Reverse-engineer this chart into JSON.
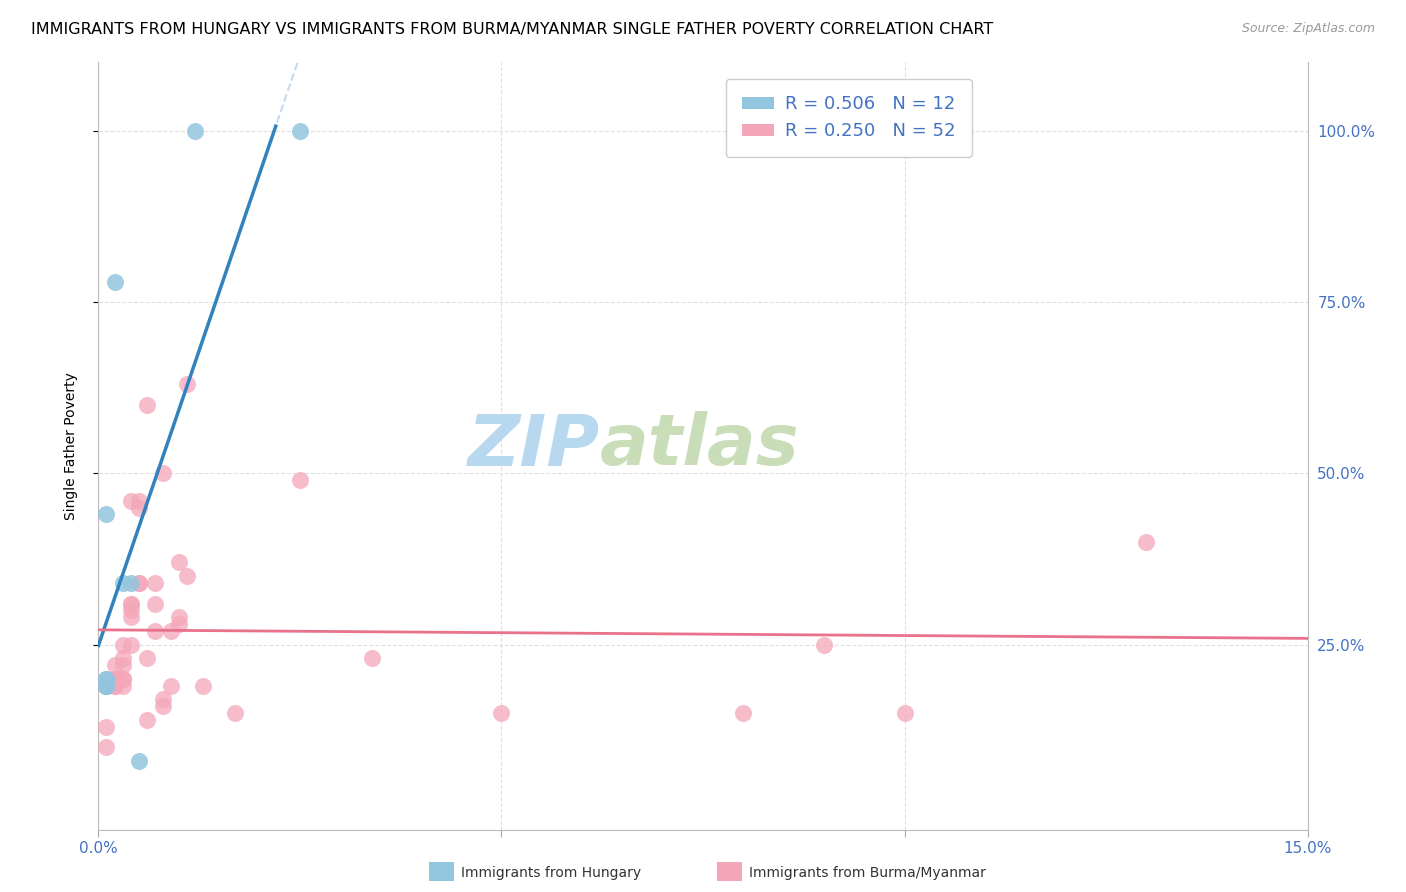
{
  "title": "IMMIGRANTS FROM HUNGARY VS IMMIGRANTS FROM BURMA/MYANMAR SINGLE FATHER POVERTY CORRELATION CHART",
  "source": "Source: ZipAtlas.com",
  "ylabel": "Single Father Poverty",
  "right_yticks": [
    "100.0%",
    "75.0%",
    "50.0%",
    "25.0%"
  ],
  "right_ytick_vals": [
    1.0,
    0.75,
    0.5,
    0.25
  ],
  "xlim": [
    0.0,
    0.15
  ],
  "ylim": [
    -0.02,
    1.1
  ],
  "legend_hungary_R": "0.506",
  "legend_hungary_N": "12",
  "legend_burma_R": "0.250",
  "legend_burma_N": "52",
  "hungary_color": "#92c5de",
  "burma_color": "#f4a6b8",
  "trendline_hungary_color": "#3182bd",
  "trendline_burma_color": "#e8728a",
  "trendline_hungary_dashed_color": "#c6dbef",
  "watermark_zip": "ZIP",
  "watermark_atlas": "atlas",
  "hungary_x": [
    0.001,
    0.002,
    0.001,
    0.001,
    0.001,
    0.001,
    0.003,
    0.004,
    0.005,
    0.025,
    0.012,
    0.001
  ],
  "hungary_y": [
    0.2,
    0.78,
    0.44,
    0.2,
    0.19,
    0.19,
    0.34,
    0.34,
    0.08,
    1.0,
    1.0,
    0.19
  ],
  "burma_x": [
    0.001,
    0.001,
    0.001,
    0.001,
    0.001,
    0.002,
    0.002,
    0.002,
    0.002,
    0.002,
    0.002,
    0.003,
    0.003,
    0.003,
    0.003,
    0.003,
    0.003,
    0.004,
    0.004,
    0.004,
    0.004,
    0.004,
    0.004,
    0.005,
    0.005,
    0.005,
    0.005,
    0.006,
    0.006,
    0.006,
    0.007,
    0.007,
    0.007,
    0.008,
    0.008,
    0.008,
    0.009,
    0.009,
    0.01,
    0.01,
    0.01,
    0.011,
    0.011,
    0.013,
    0.017,
    0.025,
    0.034,
    0.05,
    0.08,
    0.09,
    0.1,
    0.13
  ],
  "burma_y": [
    0.19,
    0.19,
    0.13,
    0.19,
    0.1,
    0.19,
    0.2,
    0.2,
    0.19,
    0.2,
    0.22,
    0.19,
    0.2,
    0.23,
    0.22,
    0.2,
    0.25,
    0.46,
    0.3,
    0.29,
    0.25,
    0.31,
    0.31,
    0.45,
    0.46,
    0.34,
    0.34,
    0.6,
    0.23,
    0.14,
    0.27,
    0.34,
    0.31,
    0.16,
    0.17,
    0.5,
    0.27,
    0.19,
    0.37,
    0.28,
    0.29,
    0.35,
    0.63,
    0.19,
    0.15,
    0.49,
    0.23,
    0.15,
    0.15,
    0.25,
    0.15,
    0.4
  ],
  "background_color": "#ffffff",
  "grid_color": "#e0e0e0",
  "title_fontsize": 11.5,
  "axis_label_fontsize": 10,
  "tick_fontsize": 11,
  "watermark_fontsize_zip": 52,
  "watermark_fontsize_atlas": 52,
  "watermark_color_zip": "#cce4f5",
  "watermark_color_atlas": "#d8e8c8",
  "source_fontsize": 9,
  "legend_fontsize": 13
}
